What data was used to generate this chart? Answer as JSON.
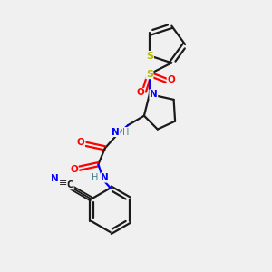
{
  "background_color": "#f0f0f0",
  "bond_color": "#1a1a1a",
  "sulfur_color": "#b8b800",
  "nitrogen_color": "#0000ff",
  "oxygen_color": "#ff0000",
  "carbon_color": "#1a1a1a",
  "h_color": "#408080",
  "figsize": [
    3.0,
    3.0
  ],
  "dpi": 100,
  "xlim": [
    0,
    10
  ],
  "ylim": [
    0,
    10
  ]
}
